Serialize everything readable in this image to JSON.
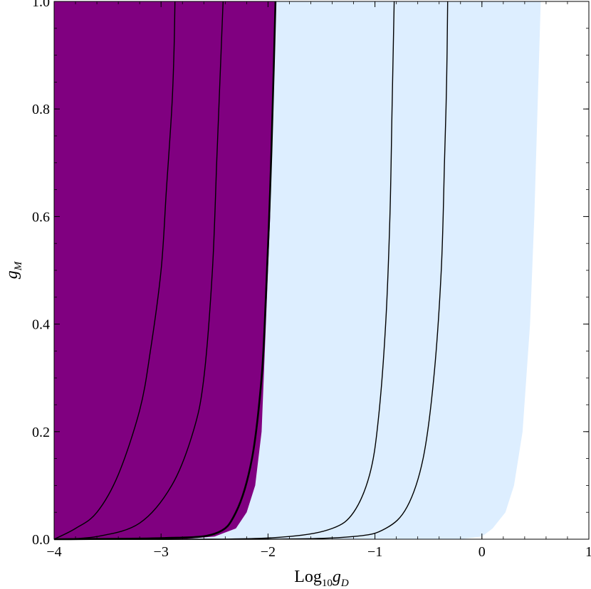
{
  "chart_data": {
    "type": "area",
    "title": "",
    "xlabel": {
      "main": "Log",
      "sub": "10",
      "var": "g",
      "var_sub": "D"
    },
    "ylabel": {
      "var": "g",
      "var_sub": "M"
    },
    "xlim": [
      -4.0,
      1.0
    ],
    "ylim": [
      0.0,
      1.0
    ],
    "xticks": [
      -4,
      -3,
      -2,
      -1,
      0,
      1
    ],
    "xtick_labels": [
      "−4",
      "−3",
      "−2",
      "−1",
      "0",
      "1"
    ],
    "yticks": [
      0.0,
      0.2,
      0.4,
      0.6,
      0.8,
      1.0
    ],
    "ytick_labels": [
      "0.0",
      "0.2",
      "0.4",
      "0.6",
      "0.8",
      "1.0"
    ],
    "grid": false,
    "colors": {
      "dark_region": "#800080",
      "light_region": "#ddeeff",
      "curve": "#000000"
    },
    "regions": [
      {
        "fill": "light",
        "boundary_x_at_gM": [
          {
            "gM": 0.0,
            "x": -4.0
          },
          {
            "gM": 0.0,
            "x": -0.2
          },
          {
            "gM": 0.005,
            "x": 0.0
          },
          {
            "gM": 0.02,
            "x": 0.1
          },
          {
            "gM": 0.05,
            "x": 0.22
          },
          {
            "gM": 0.1,
            "x": 0.3
          },
          {
            "gM": 0.2,
            "x": 0.38
          },
          {
            "gM": 0.4,
            "x": 0.45
          },
          {
            "gM": 0.6,
            "x": 0.49
          },
          {
            "gM": 0.8,
            "x": 0.52
          },
          {
            "gM": 1.0,
            "x": 0.55
          }
        ]
      },
      {
        "fill": "dark",
        "boundary_x_at_gM": [
          {
            "gM": 0.0,
            "x": -2.8
          },
          {
            "gM": 0.005,
            "x": -2.5
          },
          {
            "gM": 0.02,
            "x": -2.3
          },
          {
            "gM": 0.05,
            "x": -2.2
          },
          {
            "gM": 0.1,
            "x": -2.12
          },
          {
            "gM": 0.2,
            "x": -2.06
          },
          {
            "gM": 0.4,
            "x": -2.02
          },
          {
            "gM": 0.6,
            "x": -1.98
          },
          {
            "gM": 0.8,
            "x": -1.96
          },
          {
            "gM": 1.0,
            "x": -1.93
          }
        ]
      }
    ],
    "curves": [
      {
        "points": [
          {
            "x": -4.0,
            "y": 0.0
          },
          {
            "x": -3.8,
            "y": 0.02
          },
          {
            "x": -3.6,
            "y": 0.05
          },
          {
            "x": -3.4,
            "y": 0.12
          },
          {
            "x": -3.2,
            "y": 0.24
          },
          {
            "x": -3.1,
            "y": 0.35
          },
          {
            "x": -3.0,
            "y": 0.5
          },
          {
            "x": -2.95,
            "y": 0.65
          },
          {
            "x": -2.9,
            "y": 0.8
          },
          {
            "x": -2.88,
            "y": 0.9
          },
          {
            "x": -2.87,
            "y": 1.0
          }
        ]
      },
      {
        "points": [
          {
            "x": -4.0,
            "y": 0.0
          },
          {
            "x": -3.6,
            "y": 0.005
          },
          {
            "x": -3.2,
            "y": 0.03
          },
          {
            "x": -2.9,
            "y": 0.1
          },
          {
            "x": -2.7,
            "y": 0.2
          },
          {
            "x": -2.6,
            "y": 0.3
          },
          {
            "x": -2.52,
            "y": 0.5
          },
          {
            "x": -2.48,
            "y": 0.7
          },
          {
            "x": -2.45,
            "y": 0.85
          },
          {
            "x": -2.42,
            "y": 1.0
          }
        ]
      },
      {
        "points": [
          {
            "x": -4.0,
            "y": 0.0
          },
          {
            "x": -3.0,
            "y": 0.002
          },
          {
            "x": -2.5,
            "y": 0.01
          },
          {
            "x": -2.3,
            "y": 0.05
          },
          {
            "x": -2.15,
            "y": 0.15
          },
          {
            "x": -2.06,
            "y": 0.3
          },
          {
            "x": -2.02,
            "y": 0.45
          },
          {
            "x": -1.98,
            "y": 0.65
          },
          {
            "x": -1.95,
            "y": 0.85
          },
          {
            "x": -1.93,
            "y": 1.0
          }
        ]
      },
      {
        "points": [
          {
            "x": -4.0,
            "y": 0.0
          },
          {
            "x": -2.5,
            "y": 0.0
          },
          {
            "x": -1.8,
            "y": 0.005
          },
          {
            "x": -1.4,
            "y": 0.02
          },
          {
            "x": -1.2,
            "y": 0.05
          },
          {
            "x": -1.05,
            "y": 0.12
          },
          {
            "x": -0.97,
            "y": 0.22
          },
          {
            "x": -0.9,
            "y": 0.4
          },
          {
            "x": -0.86,
            "y": 0.6
          },
          {
            "x": -0.84,
            "y": 0.8
          },
          {
            "x": -0.82,
            "y": 1.0
          }
        ]
      },
      {
        "points": [
          {
            "x": -4.0,
            "y": 0.0
          },
          {
            "x": -2.0,
            "y": 0.0
          },
          {
            "x": -1.2,
            "y": 0.005
          },
          {
            "x": -0.9,
            "y": 0.02
          },
          {
            "x": -0.7,
            "y": 0.06
          },
          {
            "x": -0.55,
            "y": 0.15
          },
          {
            "x": -0.45,
            "y": 0.3
          },
          {
            "x": -0.38,
            "y": 0.5
          },
          {
            "x": -0.35,
            "y": 0.7
          },
          {
            "x": -0.33,
            "y": 0.85
          },
          {
            "x": -0.32,
            "y": 1.0
          }
        ]
      }
    ]
  }
}
